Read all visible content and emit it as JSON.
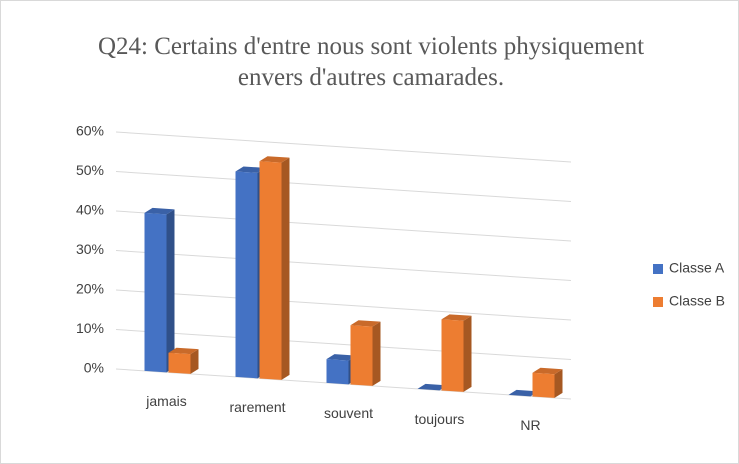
{
  "chart_data": {
    "type": "bar3d",
    "title": "Q24: Certains d'entre nous sont violents physiquement envers d'autres camarades.",
    "categories": [
      "jamais",
      "rarement",
      "souvent",
      "toujours",
      "NR"
    ],
    "series": [
      {
        "name": "Classe A",
        "color": "#4472c4",
        "values": [
          40,
          52,
          6,
          0,
          0
        ]
      },
      {
        "name": "Classe B",
        "color": "#ed7d31",
        "values": [
          5,
          55,
          15,
          18,
          6
        ]
      }
    ],
    "ylim": [
      0,
      60
    ],
    "yticks": [
      {
        "value": 0,
        "label": "0%"
      },
      {
        "value": 10,
        "label": "10%"
      },
      {
        "value": 20,
        "label": "20%"
      },
      {
        "value": 30,
        "label": "30%"
      },
      {
        "value": 40,
        "label": "40%"
      },
      {
        "value": 50,
        "label": "50%"
      },
      {
        "value": 60,
        "label": "60%"
      }
    ],
    "grid": true,
    "legend": "right"
  }
}
